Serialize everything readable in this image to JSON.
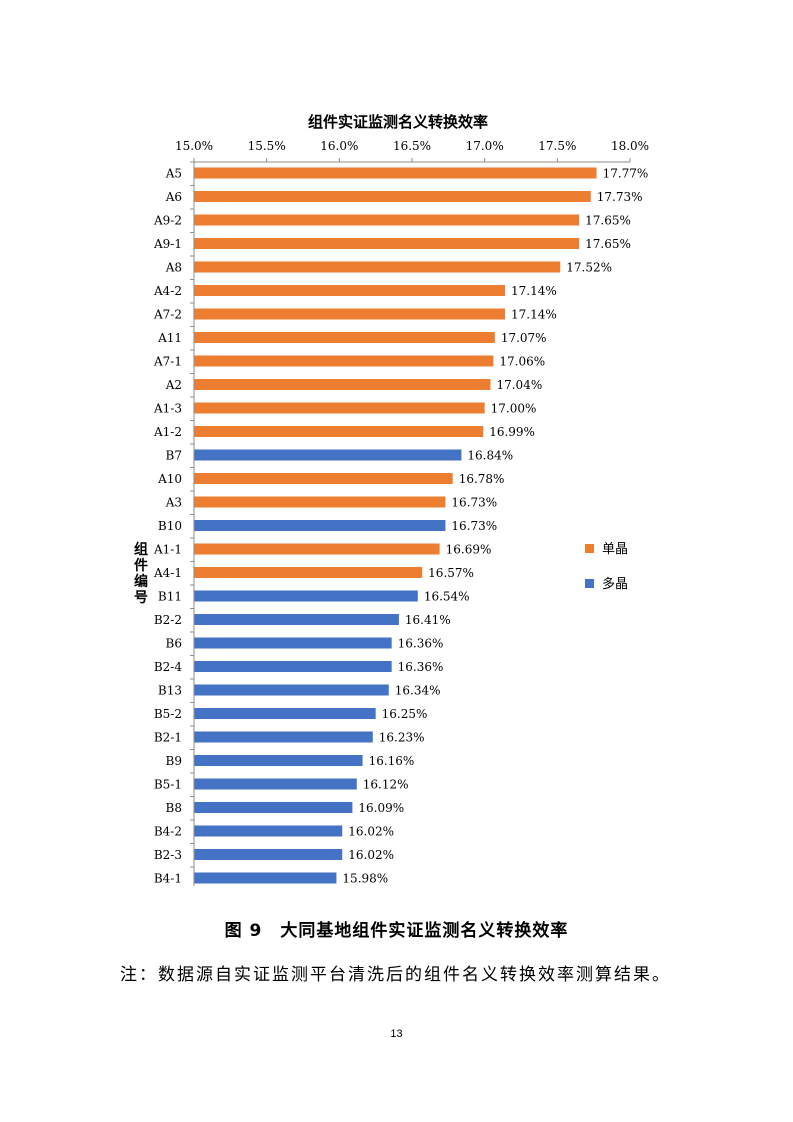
{
  "chart_data": {
    "type": "bar",
    "orientation": "horizontal",
    "title": "组件实证监测名义转换效率",
    "ylabel": "组件编号",
    "xlim": [
      15.0,
      18.0
    ],
    "x_ticks": [
      "15.0%",
      "15.5%",
      "16.0%",
      "16.5%",
      "17.0%",
      "17.5%",
      "18.0%"
    ],
    "x_tick_values": [
      15.0,
      15.5,
      16.0,
      16.5,
      17.0,
      17.5,
      18.0
    ],
    "x_axis_position": "top",
    "grid": false,
    "legend": [
      "单晶",
      "多晶"
    ],
    "legend_position": "right",
    "categories": [
      "A5",
      "A6",
      "A9-2",
      "A9-1",
      "A8",
      "A4-2",
      "A7-2",
      "A11",
      "A7-1",
      "A2",
      "A1-3",
      "A1-2",
      "B7",
      "A10",
      "A3",
      "B10",
      "A1-1",
      "A4-1",
      "B11",
      "B2-2",
      "B6",
      "B2-4",
      "B13",
      "B5-2",
      "B2-1",
      "B9",
      "B5-1",
      "B8",
      "B4-2",
      "B2-3",
      "B4-1"
    ],
    "values": [
      17.77,
      17.73,
      17.65,
      17.65,
      17.52,
      17.14,
      17.14,
      17.07,
      17.06,
      17.04,
      17.0,
      16.99,
      16.84,
      16.78,
      16.73,
      16.73,
      16.69,
      16.57,
      16.54,
      16.41,
      16.36,
      16.36,
      16.34,
      16.25,
      16.23,
      16.16,
      16.12,
      16.09,
      16.02,
      16.02,
      15.98
    ],
    "value_labels": [
      "17.77%",
      "17.73%",
      "17.65%",
      "17.65%",
      "17.52%",
      "17.14%",
      "17.14%",
      "17.07%",
      "17.06%",
      "17.04%",
      "17.00%",
      "16.99%",
      "16.84%",
      "16.78%",
      "16.73%",
      "16.73%",
      "16.69%",
      "16.57%",
      "16.54%",
      "16.41%",
      "16.36%",
      "16.36%",
      "16.34%",
      "16.25%",
      "16.23%",
      "16.16%",
      "16.12%",
      "16.09%",
      "16.02%",
      "16.02%",
      "15.98%"
    ],
    "series_of_bar": [
      "单晶",
      "单晶",
      "单晶",
      "单晶",
      "单晶",
      "单晶",
      "单晶",
      "单晶",
      "单晶",
      "单晶",
      "单晶",
      "单晶",
      "多晶",
      "单晶",
      "单晶",
      "多晶",
      "单晶",
      "单晶",
      "多晶",
      "多晶",
      "多晶",
      "多晶",
      "多晶",
      "多晶",
      "多晶",
      "多晶",
      "多晶",
      "多晶",
      "多晶",
      "多晶",
      "多晶"
    ],
    "colors": {
      "单晶": "#ed7d31",
      "多晶": "#4472c4"
    }
  },
  "caption": "图 9　大同基地组件实证监测名义转换效率",
  "note": "注：数据源自实证监测平台清洗后的组件名义转换效率测算结果。",
  "page_number": "13"
}
